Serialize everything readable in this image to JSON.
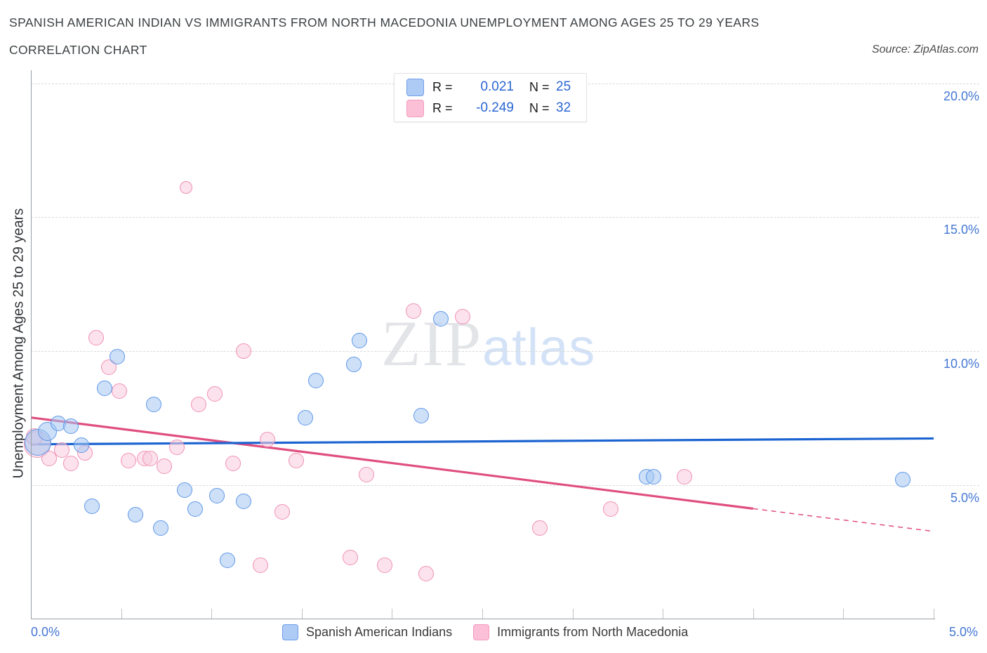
{
  "header": {
    "title": "SPANISH AMERICAN INDIAN VS IMMIGRANTS FROM NORTH MACEDONIA UNEMPLOYMENT AMONG AGES 25 TO 29 YEARS",
    "subtitle": "CORRELATION CHART",
    "source": "Source: ZipAtlas.com"
  },
  "watermark": {
    "zip": "ZIP",
    "atlas": "atlas"
  },
  "legend_box": {
    "rows": [
      {
        "series": "blue",
        "r_label": "R =",
        "r_value": "0.021",
        "n_label": "N =",
        "n_value": "25"
      },
      {
        "series": "pink",
        "r_label": "R =",
        "r_value": "-0.249",
        "n_label": "N =",
        "n_value": "32"
      }
    ]
  },
  "y_axis": {
    "label": "Unemployment Among Ages 25 to 29 years",
    "tick_values": [
      20,
      15,
      10,
      5
    ],
    "tick_labels": [
      "20.0%",
      "15.0%",
      "10.0%",
      "5.0%"
    ]
  },
  "x_axis": {
    "min_label": "0.0%",
    "max_label": "5.0%",
    "min": 0,
    "max": 5,
    "tick_step": 0.5
  },
  "bottom_legend": [
    {
      "series": "blue",
      "label": "Spanish American Indians"
    },
    {
      "series": "pink",
      "label": "Immigrants from North Macedonia"
    }
  ],
  "colors": {
    "blue_stroke": "#5e97e8",
    "blue_fill": "rgba(164,199,243,0.55)",
    "pink_stroke": "#f191b4",
    "pink_fill": "rgba(248,205,222,0.58)",
    "blue_trend": "#1c64d1",
    "pink_trend": "#e04e80",
    "grid": "#d9d9d9",
    "axis_text": "#4477d4"
  },
  "chart_data": {
    "type": "scatter",
    "x_unit": "percent",
    "y_unit": "percent",
    "x_range": [
      0,
      5
    ],
    "y_range": [
      0,
      20.5
    ],
    "grid": "horizontal-dashed",
    "legend_position": "bottom",
    "series": [
      {
        "name": "Spanish American Indians",
        "color_key": "blue",
        "r": 0.021,
        "n": 25,
        "points": [
          {
            "x": 0.04,
            "y": 6.6,
            "r": 19
          },
          {
            "x": 0.09,
            "y": 7.0,
            "r": 13.5
          },
          {
            "x": 0.15,
            "y": 7.3,
            "r": 11
          },
          {
            "x": 0.22,
            "y": 7.2,
            "r": 11
          },
          {
            "x": 0.28,
            "y": 6.5,
            "r": 11
          },
          {
            "x": 0.34,
            "y": 4.2,
            "r": 11
          },
          {
            "x": 0.41,
            "y": 8.6,
            "r": 11
          },
          {
            "x": 0.48,
            "y": 9.8,
            "r": 11
          },
          {
            "x": 0.58,
            "y": 3.9,
            "r": 11
          },
          {
            "x": 0.68,
            "y": 8.0,
            "r": 11
          },
          {
            "x": 0.72,
            "y": 3.4,
            "r": 11
          },
          {
            "x": 0.85,
            "y": 4.8,
            "r": 11
          },
          {
            "x": 0.91,
            "y": 4.1,
            "r": 11
          },
          {
            "x": 1.03,
            "y": 4.6,
            "r": 11
          },
          {
            "x": 1.09,
            "y": 2.2,
            "r": 11
          },
          {
            "x": 1.18,
            "y": 4.4,
            "r": 11
          },
          {
            "x": 1.52,
            "y": 7.5,
            "r": 11
          },
          {
            "x": 1.58,
            "y": 8.9,
            "r": 11
          },
          {
            "x": 1.79,
            "y": 9.5,
            "r": 11
          },
          {
            "x": 1.82,
            "y": 10.4,
            "r": 11
          },
          {
            "x": 2.16,
            "y": 7.6,
            "r": 11
          },
          {
            "x": 2.27,
            "y": 11.2,
            "r": 11
          },
          {
            "x": 3.41,
            "y": 5.3,
            "r": 11
          },
          {
            "x": 3.45,
            "y": 5.3,
            "r": 11
          },
          {
            "x": 4.83,
            "y": 5.2,
            "r": 11
          }
        ],
        "trend": {
          "solid": {
            "x1": 0,
            "y1": 6.52,
            "x2": 5.0,
            "y2": 6.74
          }
        }
      },
      {
        "name": "Immigrants from North Macedonia",
        "color_key": "pink",
        "r": -0.249,
        "n": 32,
        "points": [
          {
            "x": 0.035,
            "y": 6.51,
            "r": 19
          },
          {
            "x": 0.02,
            "y": 6.8,
            "r": 12
          },
          {
            "x": 0.1,
            "y": 6.0,
            "r": 11
          },
          {
            "x": 0.17,
            "y": 6.3,
            "r": 11
          },
          {
            "x": 0.22,
            "y": 5.8,
            "r": 11
          },
          {
            "x": 0.3,
            "y": 6.2,
            "r": 11
          },
          {
            "x": 0.36,
            "y": 10.5,
            "r": 11
          },
          {
            "x": 0.43,
            "y": 9.4,
            "r": 11
          },
          {
            "x": 0.49,
            "y": 8.5,
            "r": 11
          },
          {
            "x": 0.54,
            "y": 5.9,
            "r": 11
          },
          {
            "x": 0.63,
            "y": 6.0,
            "r": 11
          },
          {
            "x": 0.66,
            "y": 6.0,
            "r": 11
          },
          {
            "x": 0.74,
            "y": 5.7,
            "r": 11
          },
          {
            "x": 0.81,
            "y": 6.4,
            "r": 11
          },
          {
            "x": 0.86,
            "y": 16.1,
            "r": 9
          },
          {
            "x": 0.93,
            "y": 8.0,
            "r": 11
          },
          {
            "x": 1.02,
            "y": 8.4,
            "r": 11
          },
          {
            "x": 1.12,
            "y": 5.8,
            "r": 11
          },
          {
            "x": 1.18,
            "y": 10.0,
            "r": 11
          },
          {
            "x": 1.27,
            "y": 2.0,
            "r": 11
          },
          {
            "x": 1.31,
            "y": 6.7,
            "r": 11
          },
          {
            "x": 1.39,
            "y": 4.0,
            "r": 11
          },
          {
            "x": 1.47,
            "y": 5.9,
            "r": 11
          },
          {
            "x": 1.77,
            "y": 2.3,
            "r": 11
          },
          {
            "x": 1.86,
            "y": 5.4,
            "r": 11
          },
          {
            "x": 1.96,
            "y": 2.0,
            "r": 11
          },
          {
            "x": 2.12,
            "y": 11.5,
            "r": 11
          },
          {
            "x": 2.19,
            "y": 1.7,
            "r": 11
          },
          {
            "x": 2.39,
            "y": 11.3,
            "r": 11
          },
          {
            "x": 2.82,
            "y": 3.4,
            "r": 11
          },
          {
            "x": 3.21,
            "y": 4.1,
            "r": 11
          },
          {
            "x": 3.62,
            "y": 5.3,
            "r": 11
          }
        ],
        "trend": {
          "solid": {
            "x1": 0,
            "y1": 7.52,
            "x2": 4.0,
            "y2": 4.12
          },
          "dashed": {
            "x1": 4.0,
            "y1": 4.12,
            "x2": 5.0,
            "y2": 3.27
          }
        }
      }
    ]
  }
}
